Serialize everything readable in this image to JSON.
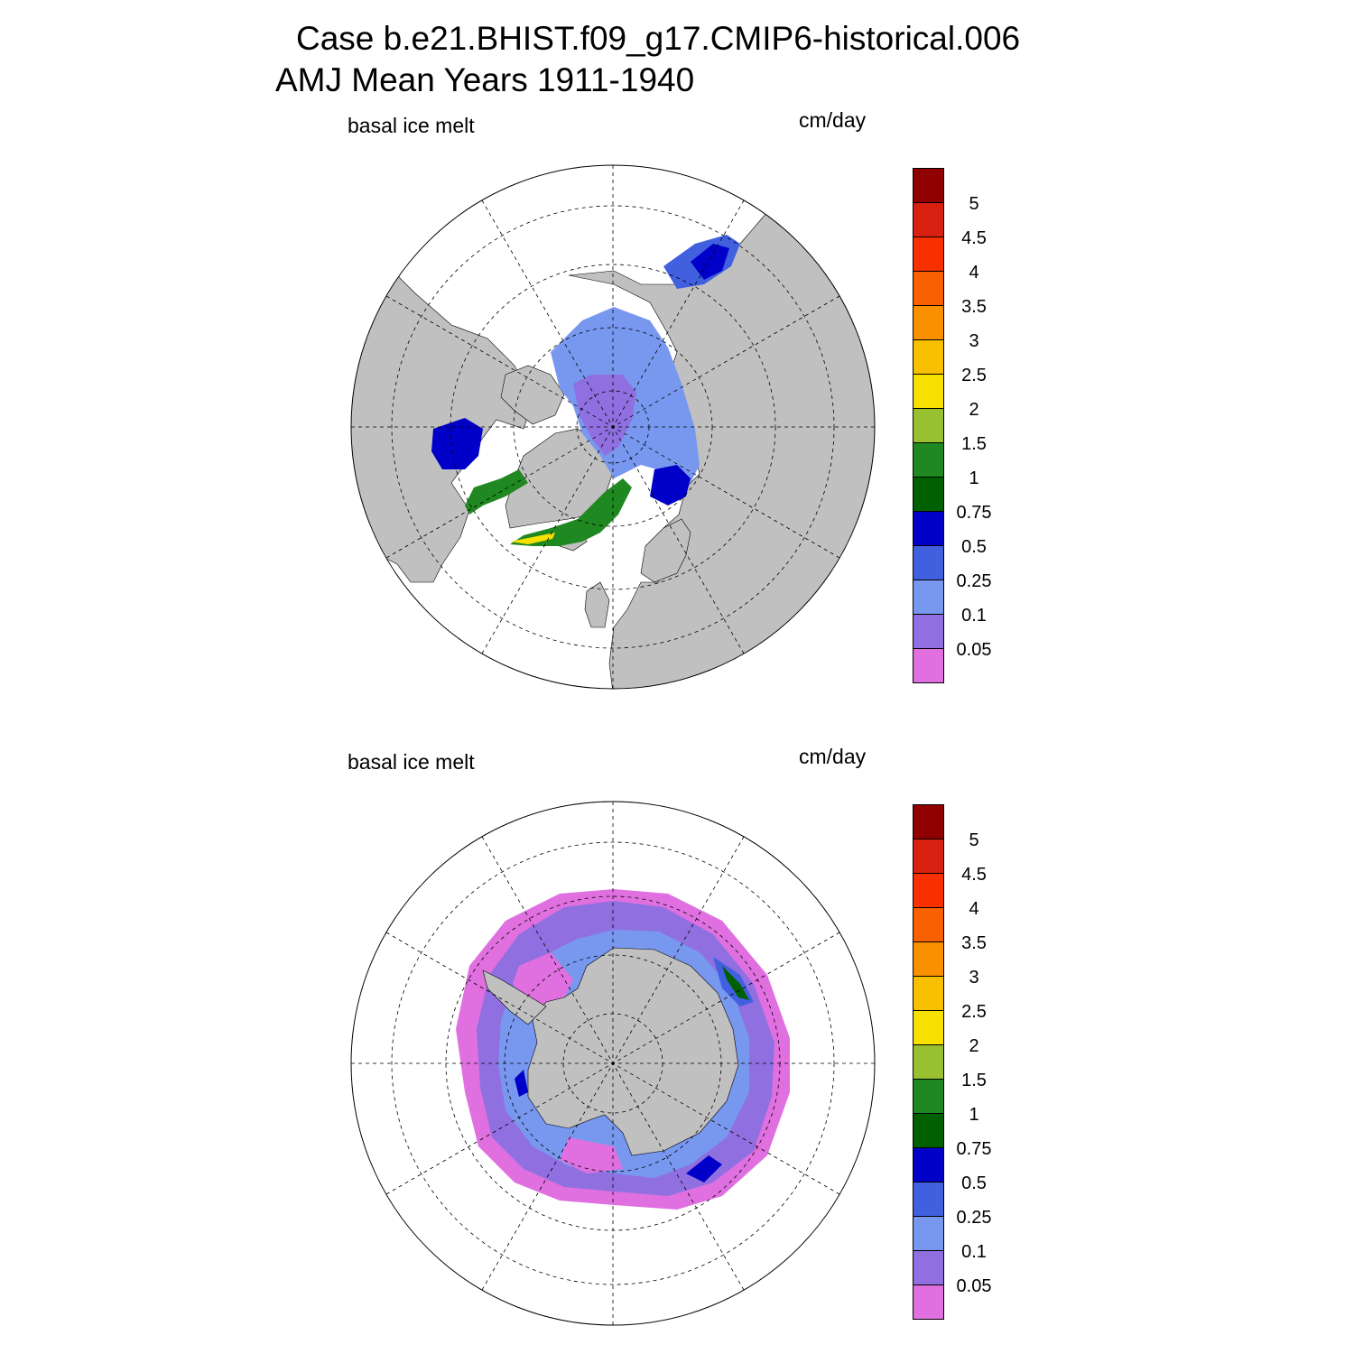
{
  "header": {
    "title_line1": "Case b.e21.BHIST.f09_g17.CMIP6-historical.006",
    "title_line2": "AMJ Mean   Years 1911-1940"
  },
  "panels": [
    {
      "variable": "basal ice melt",
      "units": "cm/day",
      "hemisphere": "north"
    },
    {
      "variable": "basal ice melt",
      "units": "cm/day",
      "hemisphere": "south"
    }
  ],
  "colorbar": {
    "levels": [
      "0.05",
      "0.1",
      "0.25",
      "0.5",
      "0.75",
      "1",
      "1.5",
      "2",
      "2.5",
      "3",
      "3.5",
      "4",
      "4.5",
      "5"
    ],
    "colors": [
      "#e070e0",
      "#9070e0",
      "#7898f0",
      "#4060e0",
      "#0000c8",
      "#006000",
      "#208820",
      "#98c030",
      "#f8e000",
      "#f8c000",
      "#f89000",
      "#f86000",
      "#f83000",
      "#d82010",
      "#900000"
    ]
  },
  "map_colors": {
    "land": "#c0c0c0",
    "ocean": "#ffffff"
  }
}
